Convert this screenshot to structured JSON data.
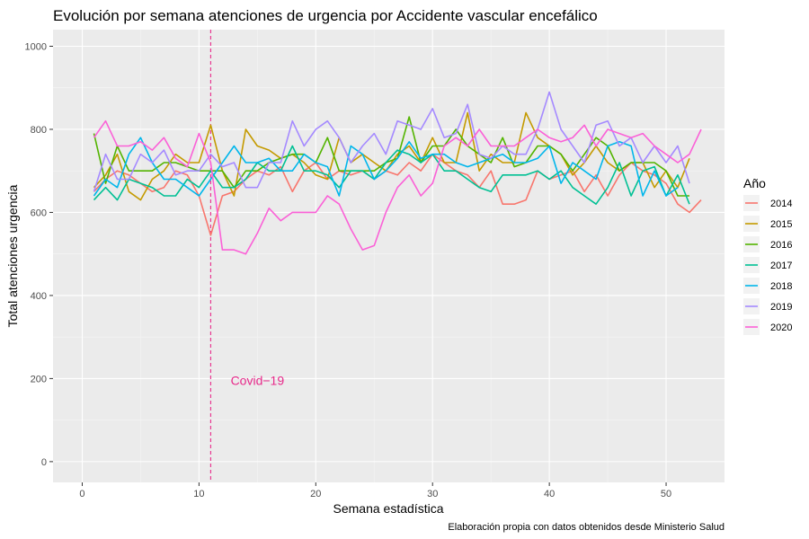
{
  "chart_data": {
    "type": "line",
    "title": "Evolución por semana atenciones de urgencia por Accidente vascular encefálico",
    "xlabel": "Semana estadística",
    "ylabel": "Total atenciones urgencia",
    "caption": "Elaboración propia con datos obtenidos desde Ministerio Salud",
    "xlim": [
      -2.5,
      55
    ],
    "ylim": [
      -50,
      1040
    ],
    "x_ticks": [
      0,
      10,
      20,
      30,
      40,
      50
    ],
    "y_ticks": [
      0,
      200,
      400,
      600,
      800,
      1000
    ],
    "grid": true,
    "legend_title": "Año",
    "legend_position": "right",
    "annotation": {
      "text": "Covid−19",
      "x": 15,
      "y": 195,
      "color": "#e7298a"
    },
    "vline": {
      "x": 11,
      "color": "#e7298a",
      "style": "dashed"
    },
    "series": [
      {
        "name": "2014",
        "color": "#F8766D",
        "values": [
          650,
          680,
          700,
          690,
          670,
          650,
          660,
          700,
          690,
          640,
          545,
          640,
          650,
          680,
          700,
          690,
          710,
          650,
          700,
          720,
          680,
          700,
          690,
          700,
          680,
          700,
          690,
          720,
          700,
          740,
          720,
          700,
          690,
          660,
          700,
          620,
          620,
          630,
          700,
          680,
          690,
          700,
          650,
          690,
          640,
          690,
          720,
          700,
          690,
          670,
          620,
          600,
          630
        ]
      },
      {
        "name": "2015",
        "color": "#C49A00",
        "values": [
          660,
          690,
          740,
          650,
          630,
          680,
          700,
          740,
          720,
          720,
          810,
          700,
          640,
          800,
          760,
          750,
          730,
          740,
          720,
          690,
          680,
          780,
          720,
          740,
          720,
          700,
          740,
          760,
          720,
          780,
          720,
          720,
          840,
          700,
          740,
          720,
          720,
          840,
          780,
          760,
          740,
          690,
          720,
          760,
          720,
          700,
          720,
          720,
          660,
          700,
          660,
          730
        ]
      },
      {
        "name": "2016",
        "color": "#53B400",
        "values": [
          790,
          670,
          760,
          700,
          700,
          700,
          720,
          720,
          710,
          700,
          700,
          700,
          660,
          700,
          700,
          720,
          730,
          740,
          740,
          720,
          780,
          700,
          700,
          700,
          700,
          720,
          730,
          830,
          720,
          760,
          760,
          800,
          760,
          740,
          720,
          780,
          710,
          720,
          760,
          760,
          740,
          700,
          740,
          780,
          760,
          700,
          720,
          720,
          720,
          700,
          640,
          640
        ]
      },
      {
        "name": "2017",
        "color": "#00C094",
        "values": [
          630,
          660,
          630,
          680,
          670,
          660,
          640,
          640,
          680,
          660,
          700,
          660,
          660,
          680,
          720,
          700,
          700,
          760,
          700,
          700,
          690,
          660,
          700,
          700,
          680,
          720,
          750,
          740,
          720,
          740,
          700,
          700,
          680,
          660,
          650,
          690,
          690,
          690,
          700,
          680,
          700,
          660,
          640,
          620,
          660,
          720,
          640,
          700,
          710,
          640,
          690,
          620
        ]
      },
      {
        "name": "2018",
        "color": "#00B6EB",
        "values": [
          640,
          680,
          660,
          740,
          780,
          720,
          680,
          680,
          660,
          640,
          680,
          720,
          760,
          720,
          720,
          730,
          700,
          700,
          740,
          720,
          710,
          640,
          760,
          740,
          680,
          700,
          730,
          770,
          730,
          740,
          740,
          720,
          710,
          720,
          730,
          740,
          720,
          720,
          730,
          760,
          670,
          720,
          700,
          680,
          760,
          770,
          760,
          640,
          700,
          640,
          660
        ]
      },
      {
        "name": "2019",
        "color": "#A58AFF",
        "values": [
          650,
          740,
          680,
          680,
          740,
          720,
          750,
          690,
          700,
          700,
          740,
          710,
          720,
          660,
          660,
          720,
          720,
          820,
          760,
          800,
          820,
          780,
          720,
          760,
          790,
          740,
          820,
          810,
          800,
          850,
          780,
          790,
          860,
          740,
          730,
          760,
          740,
          740,
          800,
          890,
          800,
          760,
          720,
          810,
          820,
          760,
          780,
          720,
          760,
          720,
          760,
          670
        ]
      },
      {
        "name": "2020",
        "color": "#FB61D7",
        "values": [
          780,
          820,
          760,
          760,
          770,
          750,
          780,
          730,
          710,
          790,
          720,
          510,
          510,
          500,
          550,
          610,
          580,
          600,
          600,
          600,
          640,
          620,
          560,
          510,
          520,
          600,
          660,
          690,
          640,
          670,
          760,
          780,
          760,
          800,
          760,
          760,
          760,
          780,
          800,
          780,
          770,
          780,
          810,
          760,
          800,
          790,
          780,
          790,
          760,
          740,
          720,
          740,
          800
        ]
      }
    ]
  }
}
